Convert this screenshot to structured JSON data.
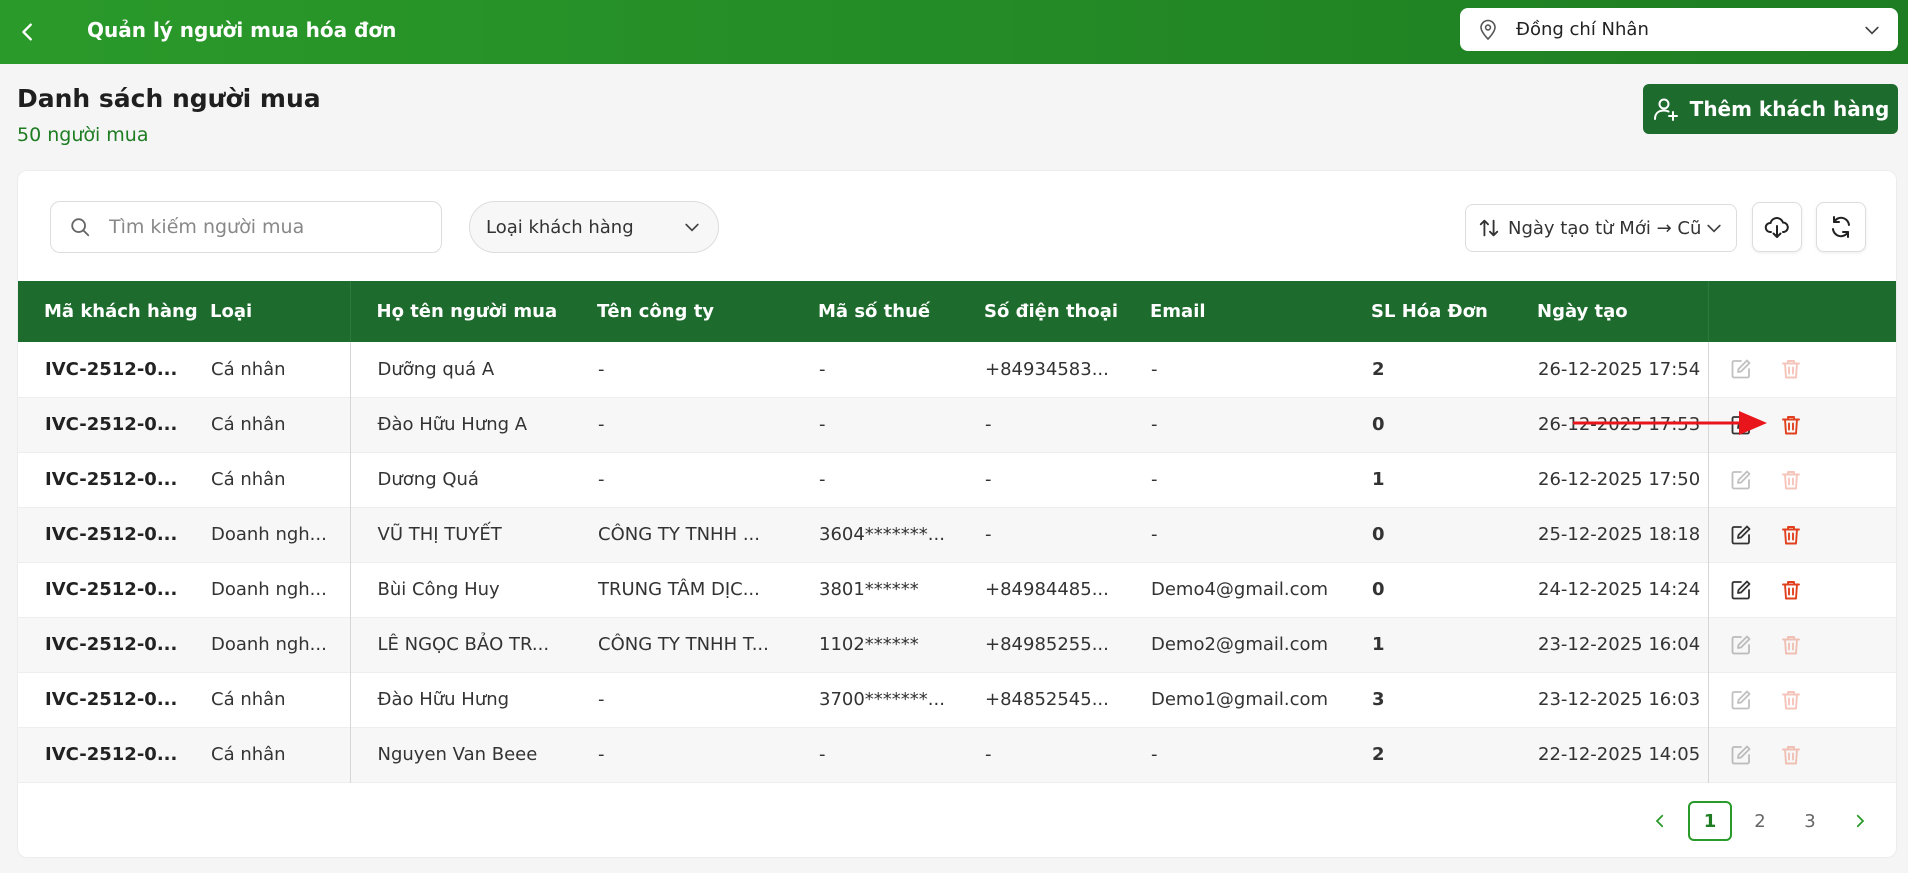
{
  "topbar": {
    "title": "Quản lý người mua hóa đơn",
    "branch": "Đồng chí Nhân"
  },
  "header": {
    "title": "Danh sách người mua",
    "count": "50 người mua",
    "add_label": "Thêm khách hàng"
  },
  "toolbar": {
    "search_placeholder": "Tìm kiếm người mua",
    "type_filter": "Loại khách hàng",
    "sort": "Ngày tạo từ Mới → Cũ"
  },
  "table": {
    "columns": [
      "Mã khách hàng",
      "Loại",
      "Họ tên người mua",
      "Tên công ty",
      "Mã số thuế",
      "Số điện thoại",
      "Email",
      "SL Hóa Đơn",
      "Ngày tạo"
    ],
    "rows": [
      {
        "code": "IVC-2512-0...",
        "type": "Cá nhân",
        "name": "Dưỡng quá A",
        "company": "-",
        "tax": "-",
        "phone": "+84934583...",
        "email": "-",
        "qty": "2",
        "date": "26-12-2025 17:54",
        "enabled": false
      },
      {
        "code": "IVC-2512-0...",
        "type": "Cá nhân",
        "name": "Đào Hữu Hưng A",
        "company": "-",
        "tax": "-",
        "phone": "-",
        "email": "-",
        "qty": "0",
        "date": "26-12-2025 17:53",
        "enabled": true
      },
      {
        "code": "IVC-2512-0...",
        "type": "Cá nhân",
        "name": "Dương Quá",
        "company": "-",
        "tax": "-",
        "phone": "-",
        "email": "-",
        "qty": "1",
        "date": "26-12-2025 17:50",
        "enabled": false
      },
      {
        "code": "IVC-2512-0...",
        "type": "Doanh ngh...",
        "name": "VŨ THỊ TUYẾT",
        "company": "CÔNG TY TNHH ...",
        "tax": "3604*******...",
        "phone": "-",
        "email": "-",
        "qty": "0",
        "date": "25-12-2025 18:18",
        "enabled": true
      },
      {
        "code": "IVC-2512-0...",
        "type": "Doanh ngh...",
        "name": "Bùi Công Huy",
        "company": "TRUNG TÂM DỊC...",
        "tax": "3801******",
        "phone": "+84984485...",
        "email": "Demo4@gmail.com",
        "qty": "0",
        "date": "24-12-2025 14:24",
        "enabled": true
      },
      {
        "code": "IVC-2512-0...",
        "type": "Doanh ngh...",
        "name": "LÊ NGỌC BẢO TR...",
        "company": "CÔNG TY TNHH T...",
        "tax": "1102******",
        "phone": "+84985255...",
        "email": "Demo2@gmail.com",
        "qty": "1",
        "date": "23-12-2025 16:04",
        "enabled": false
      },
      {
        "code": "IVC-2512-0...",
        "type": "Cá nhân",
        "name": "Đào Hữu Hưng",
        "company": "-",
        "tax": "3700*******...",
        "phone": "+84852545...",
        "email": "Demo1@gmail.com",
        "qty": "3",
        "date": "23-12-2025 16:03",
        "enabled": false
      },
      {
        "code": "IVC-2512-0...",
        "type": "Cá nhân",
        "name": "Nguyen Van Beee",
        "company": "-",
        "tax": "-",
        "phone": "-",
        "email": "-",
        "qty": "2",
        "date": "22-12-2025 14:05",
        "enabled": false
      }
    ]
  },
  "pagination": {
    "pages": [
      "1",
      "2",
      "3"
    ],
    "current": "1"
  },
  "colors": {
    "brand": "#1e6b2e",
    "accent": "#2a9a2a",
    "delete": "#e0401e",
    "annotation": "#e8161b"
  }
}
